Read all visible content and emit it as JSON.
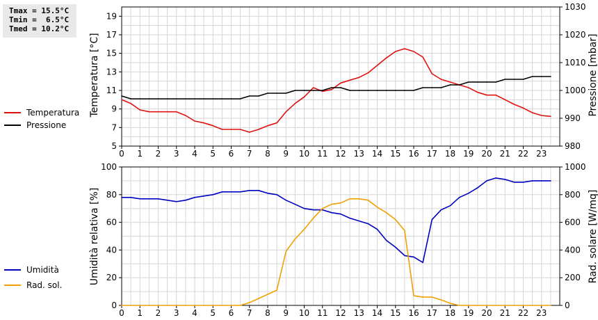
{
  "stats": {
    "tmax": "Tmax = 15.5°C",
    "tmin": "Tmin =  6.5°C",
    "tmed": "Tmed = 10.2°C"
  },
  "chart_data": [
    {
      "type": "line",
      "ylabel": "Temperatura [°C]",
      "y2label": "Pressione [mbar]",
      "ylim": [
        5,
        20
      ],
      "y2lim": [
        980,
        1030
      ],
      "xlim": [
        0,
        24
      ],
      "yticks": [
        5,
        7,
        9,
        11,
        13,
        15,
        17,
        19
      ],
      "y2ticks": [
        980,
        990,
        1000,
        1010,
        1020,
        1030
      ],
      "xticks": [
        0,
        1,
        2,
        3,
        4,
        5,
        6,
        7,
        8,
        9,
        10,
        11,
        12,
        13,
        14,
        15,
        16,
        17,
        18,
        19,
        20,
        21,
        22,
        23
      ],
      "grid": true,
      "legend_position": "left",
      "series": [
        {
          "name": "Temperatura",
          "axis": "left",
          "color": "#e01010",
          "x": [
            0,
            0.5,
            1,
            1.5,
            2,
            2.5,
            3,
            3.5,
            4,
            4.5,
            5,
            5.5,
            6,
            6.5,
            7,
            7.5,
            8,
            8.5,
            9,
            9.5,
            10,
            10.5,
            11,
            11.5,
            12,
            12.5,
            13,
            13.5,
            14,
            14.5,
            15,
            15.5,
            16,
            16.5,
            17,
            17.5,
            18,
            18.5,
            19,
            19.5,
            20,
            20.5,
            21,
            21.5,
            22,
            22.5,
            23,
            23.5
          ],
          "values": [
            10.0,
            9.6,
            8.9,
            8.7,
            8.7,
            8.7,
            8.7,
            8.3,
            7.7,
            7.5,
            7.2,
            6.8,
            6.8,
            6.8,
            6.5,
            6.8,
            7.2,
            7.5,
            8.7,
            9.6,
            10.3,
            11.3,
            10.9,
            11.1,
            11.8,
            12.1,
            12.4,
            12.9,
            13.7,
            14.5,
            15.2,
            15.5,
            15.2,
            14.6,
            12.8,
            12.2,
            11.9,
            11.6,
            11.3,
            10.8,
            10.5,
            10.5,
            10.0,
            9.5,
            9.1,
            8.6,
            8.3,
            8.2
          ]
        },
        {
          "name": "Pressione",
          "axis": "right",
          "color": "#000000",
          "x": [
            0,
            0.5,
            1,
            1.5,
            2,
            2.5,
            3,
            3.5,
            4,
            4.5,
            5,
            5.5,
            6,
            6.5,
            7,
            7.5,
            8,
            8.5,
            9,
            9.5,
            10,
            10.5,
            11,
            11.5,
            12,
            12.5,
            13,
            13.5,
            14,
            14.5,
            15,
            15.5,
            16,
            16.5,
            17,
            17.5,
            18,
            18.5,
            19,
            19.5,
            20,
            20.5,
            21,
            21.5,
            22,
            22.5,
            23,
            23.5
          ],
          "values": [
            998,
            997,
            997,
            997,
            997,
            997,
            997,
            997,
            997,
            997,
            997,
            997,
            997,
            997,
            998,
            998,
            999,
            999,
            999,
            1000,
            1000,
            1000,
            1000,
            1001,
            1001,
            1000,
            1000,
            1000,
            1000,
            1000,
            1000,
            1000,
            1000,
            1001,
            1001,
            1001,
            1002,
            1002,
            1003,
            1003,
            1003,
            1003,
            1004,
            1004,
            1004,
            1005,
            1005,
            1005
          ]
        }
      ]
    },
    {
      "type": "line",
      "ylabel": "Umidità relativa [%]",
      "y2label": "Rad. solare [W/mq]",
      "ylim": [
        0,
        100
      ],
      "y2lim": [
        0,
        1000
      ],
      "xlim": [
        0,
        24
      ],
      "yticks": [
        0,
        20,
        40,
        60,
        80,
        100
      ],
      "y2ticks": [
        0,
        200,
        400,
        600,
        800,
        1000
      ],
      "xticks": [
        0,
        1,
        2,
        3,
        4,
        5,
        6,
        7,
        8,
        9,
        10,
        11,
        12,
        13,
        14,
        15,
        16,
        17,
        18,
        19,
        20,
        21,
        22,
        23
      ],
      "grid": true,
      "legend_position": "left",
      "series": [
        {
          "name": "Umidità",
          "axis": "left",
          "color": "#0000c0",
          "x": [
            0,
            0.5,
            1,
            1.5,
            2,
            2.5,
            3,
            3.5,
            4,
            4.5,
            5,
            5.5,
            6,
            6.5,
            7,
            7.5,
            8,
            8.5,
            9,
            9.5,
            10,
            10.5,
            11,
            11.5,
            12,
            12.5,
            13,
            13.5,
            14,
            14.5,
            15,
            15.5,
            16,
            16.5,
            17,
            17.5,
            18,
            18.5,
            19,
            19.5,
            20,
            20.5,
            21,
            21.5,
            22,
            22.5,
            23,
            23.5
          ],
          "values": [
            78,
            78,
            77,
            77,
            77,
            76,
            75,
            76,
            78,
            79,
            80,
            82,
            82,
            82,
            83,
            83,
            81,
            80,
            76,
            73,
            70,
            69,
            69,
            67,
            66,
            63,
            61,
            59,
            55,
            47,
            42,
            36,
            35,
            31,
            62,
            69,
            72,
            78,
            81,
            85,
            90,
            92,
            91,
            89,
            89,
            90,
            90,
            90
          ]
        },
        {
          "name": "Rad. sol.",
          "axis": "right",
          "color": "#f0a000",
          "x": [
            0,
            0.5,
            1,
            1.5,
            2,
            2.5,
            3,
            3.5,
            4,
            4.5,
            5,
            5.5,
            6,
            6.5,
            7,
            7.5,
            8,
            8.5,
            9,
            9.5,
            10,
            10.5,
            11,
            11.5,
            12,
            12.5,
            13,
            13.5,
            14,
            14.5,
            15,
            15.5,
            16,
            16.5,
            17,
            17.5,
            18,
            18.5,
            19,
            19.5,
            20,
            20.5,
            21,
            21.5,
            22,
            22.5,
            23,
            23.5
          ],
          "values": [
            0,
            0,
            0,
            0,
            0,
            0,
            0,
            0,
            0,
            0,
            0,
            0,
            0,
            0,
            20,
            50,
            80,
            110,
            390,
            480,
            550,
            630,
            700,
            730,
            740,
            770,
            770,
            760,
            710,
            670,
            620,
            540,
            70,
            60,
            60,
            40,
            15,
            0,
            0,
            0,
            0,
            0,
            0,
            0,
            0,
            0,
            0,
            0
          ]
        }
      ]
    }
  ]
}
